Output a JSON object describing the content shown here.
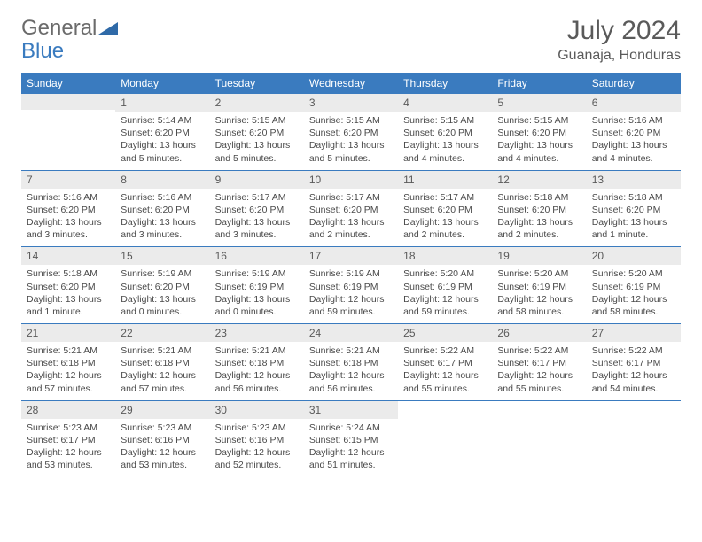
{
  "logo": {
    "text1": "General",
    "text2": "Blue"
  },
  "title": "July 2024",
  "location": "Guanaja, Honduras",
  "colors": {
    "header_bg": "#3a7bbf",
    "daynum_bg": "#ebebeb",
    "rule": "#3a7bbf",
    "text": "#5a5a5a"
  },
  "weekdays": [
    "Sunday",
    "Monday",
    "Tuesday",
    "Wednesday",
    "Thursday",
    "Friday",
    "Saturday"
  ],
  "weeks": [
    [
      {
        "n": "",
        "sr": "",
        "ss": "",
        "dl": "",
        "empty": true
      },
      {
        "n": "1",
        "sr": "Sunrise: 5:14 AM",
        "ss": "Sunset: 6:20 PM",
        "dl": "Daylight: 13 hours and 5 minutes."
      },
      {
        "n": "2",
        "sr": "Sunrise: 5:15 AM",
        "ss": "Sunset: 6:20 PM",
        "dl": "Daylight: 13 hours and 5 minutes."
      },
      {
        "n": "3",
        "sr": "Sunrise: 5:15 AM",
        "ss": "Sunset: 6:20 PM",
        "dl": "Daylight: 13 hours and 5 minutes."
      },
      {
        "n": "4",
        "sr": "Sunrise: 5:15 AM",
        "ss": "Sunset: 6:20 PM",
        "dl": "Daylight: 13 hours and 4 minutes."
      },
      {
        "n": "5",
        "sr": "Sunrise: 5:15 AM",
        "ss": "Sunset: 6:20 PM",
        "dl": "Daylight: 13 hours and 4 minutes."
      },
      {
        "n": "6",
        "sr": "Sunrise: 5:16 AM",
        "ss": "Sunset: 6:20 PM",
        "dl": "Daylight: 13 hours and 4 minutes."
      }
    ],
    [
      {
        "n": "7",
        "sr": "Sunrise: 5:16 AM",
        "ss": "Sunset: 6:20 PM",
        "dl": "Daylight: 13 hours and 3 minutes."
      },
      {
        "n": "8",
        "sr": "Sunrise: 5:16 AM",
        "ss": "Sunset: 6:20 PM",
        "dl": "Daylight: 13 hours and 3 minutes."
      },
      {
        "n": "9",
        "sr": "Sunrise: 5:17 AM",
        "ss": "Sunset: 6:20 PM",
        "dl": "Daylight: 13 hours and 3 minutes."
      },
      {
        "n": "10",
        "sr": "Sunrise: 5:17 AM",
        "ss": "Sunset: 6:20 PM",
        "dl": "Daylight: 13 hours and 2 minutes."
      },
      {
        "n": "11",
        "sr": "Sunrise: 5:17 AM",
        "ss": "Sunset: 6:20 PM",
        "dl": "Daylight: 13 hours and 2 minutes."
      },
      {
        "n": "12",
        "sr": "Sunrise: 5:18 AM",
        "ss": "Sunset: 6:20 PM",
        "dl": "Daylight: 13 hours and 2 minutes."
      },
      {
        "n": "13",
        "sr": "Sunrise: 5:18 AM",
        "ss": "Sunset: 6:20 PM",
        "dl": "Daylight: 13 hours and 1 minute."
      }
    ],
    [
      {
        "n": "14",
        "sr": "Sunrise: 5:18 AM",
        "ss": "Sunset: 6:20 PM",
        "dl": "Daylight: 13 hours and 1 minute."
      },
      {
        "n": "15",
        "sr": "Sunrise: 5:19 AM",
        "ss": "Sunset: 6:20 PM",
        "dl": "Daylight: 13 hours and 0 minutes."
      },
      {
        "n": "16",
        "sr": "Sunrise: 5:19 AM",
        "ss": "Sunset: 6:19 PM",
        "dl": "Daylight: 13 hours and 0 minutes."
      },
      {
        "n": "17",
        "sr": "Sunrise: 5:19 AM",
        "ss": "Sunset: 6:19 PM",
        "dl": "Daylight: 12 hours and 59 minutes."
      },
      {
        "n": "18",
        "sr": "Sunrise: 5:20 AM",
        "ss": "Sunset: 6:19 PM",
        "dl": "Daylight: 12 hours and 59 minutes."
      },
      {
        "n": "19",
        "sr": "Sunrise: 5:20 AM",
        "ss": "Sunset: 6:19 PM",
        "dl": "Daylight: 12 hours and 58 minutes."
      },
      {
        "n": "20",
        "sr": "Sunrise: 5:20 AM",
        "ss": "Sunset: 6:19 PM",
        "dl": "Daylight: 12 hours and 58 minutes."
      }
    ],
    [
      {
        "n": "21",
        "sr": "Sunrise: 5:21 AM",
        "ss": "Sunset: 6:18 PM",
        "dl": "Daylight: 12 hours and 57 minutes."
      },
      {
        "n": "22",
        "sr": "Sunrise: 5:21 AM",
        "ss": "Sunset: 6:18 PM",
        "dl": "Daylight: 12 hours and 57 minutes."
      },
      {
        "n": "23",
        "sr": "Sunrise: 5:21 AM",
        "ss": "Sunset: 6:18 PM",
        "dl": "Daylight: 12 hours and 56 minutes."
      },
      {
        "n": "24",
        "sr": "Sunrise: 5:21 AM",
        "ss": "Sunset: 6:18 PM",
        "dl": "Daylight: 12 hours and 56 minutes."
      },
      {
        "n": "25",
        "sr": "Sunrise: 5:22 AM",
        "ss": "Sunset: 6:17 PM",
        "dl": "Daylight: 12 hours and 55 minutes."
      },
      {
        "n": "26",
        "sr": "Sunrise: 5:22 AM",
        "ss": "Sunset: 6:17 PM",
        "dl": "Daylight: 12 hours and 55 minutes."
      },
      {
        "n": "27",
        "sr": "Sunrise: 5:22 AM",
        "ss": "Sunset: 6:17 PM",
        "dl": "Daylight: 12 hours and 54 minutes."
      }
    ],
    [
      {
        "n": "28",
        "sr": "Sunrise: 5:23 AM",
        "ss": "Sunset: 6:17 PM",
        "dl": "Daylight: 12 hours and 53 minutes."
      },
      {
        "n": "29",
        "sr": "Sunrise: 5:23 AM",
        "ss": "Sunset: 6:16 PM",
        "dl": "Daylight: 12 hours and 53 minutes."
      },
      {
        "n": "30",
        "sr": "Sunrise: 5:23 AM",
        "ss": "Sunset: 6:16 PM",
        "dl": "Daylight: 12 hours and 52 minutes."
      },
      {
        "n": "31",
        "sr": "Sunrise: 5:24 AM",
        "ss": "Sunset: 6:15 PM",
        "dl": "Daylight: 12 hours and 51 minutes."
      },
      {
        "n": "",
        "sr": "",
        "ss": "",
        "dl": "",
        "empty": true,
        "trailing": true
      },
      {
        "n": "",
        "sr": "",
        "ss": "",
        "dl": "",
        "empty": true,
        "trailing": true
      },
      {
        "n": "",
        "sr": "",
        "ss": "",
        "dl": "",
        "empty": true,
        "trailing": true
      }
    ]
  ]
}
